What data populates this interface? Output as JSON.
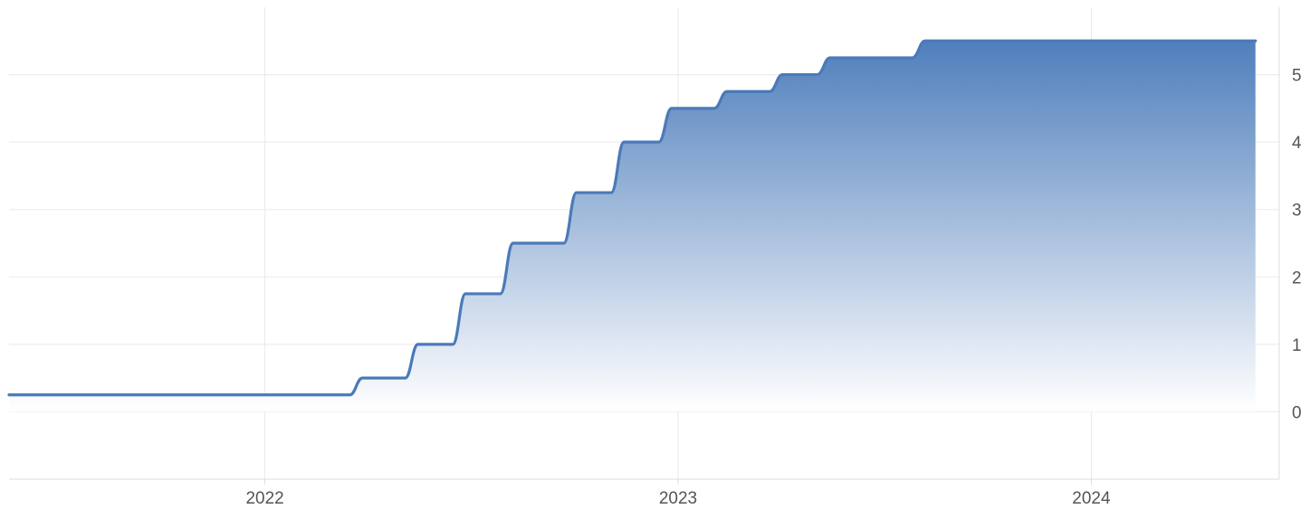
{
  "chart_data": {
    "type": "area",
    "title": "",
    "xlabel": "",
    "ylabel": "",
    "x_axis": {
      "type": "date",
      "range": [
        "2021-05-20",
        "2024-06-15"
      ],
      "ticks": [
        {
          "date": "2022-01-01",
          "label": "2022"
        },
        {
          "date": "2023-01-01",
          "label": "2023"
        },
        {
          "date": "2024-01-01",
          "label": "2024"
        }
      ]
    },
    "y_axis": {
      "position": "right",
      "range": [
        -1,
        6
      ],
      "ticks": [
        0,
        1,
        2,
        3,
        4,
        5
      ]
    },
    "grid": true,
    "legend": "none",
    "line_color": "#4a7ab8",
    "fill_gradient": [
      "#4f7fbc",
      "#ffffff"
    ],
    "series": [
      {
        "step": true,
        "points": [
          {
            "x": "2021-05-20",
            "y": 0.25
          },
          {
            "x": "2022-03-17",
            "y": 0.5
          },
          {
            "x": "2022-05-05",
            "y": 1.0
          },
          {
            "x": "2022-06-16",
            "y": 1.75
          },
          {
            "x": "2022-07-28",
            "y": 2.5
          },
          {
            "x": "2022-09-22",
            "y": 3.25
          },
          {
            "x": "2022-11-03",
            "y": 4.0
          },
          {
            "x": "2022-12-15",
            "y": 4.5
          },
          {
            "x": "2023-02-02",
            "y": 4.75
          },
          {
            "x": "2023-03-23",
            "y": 5.0
          },
          {
            "x": "2023-05-04",
            "y": 5.25
          },
          {
            "x": "2023-07-27",
            "y": 5.5
          },
          {
            "x": "2024-05-25",
            "y": 5.5
          }
        ]
      }
    ]
  }
}
